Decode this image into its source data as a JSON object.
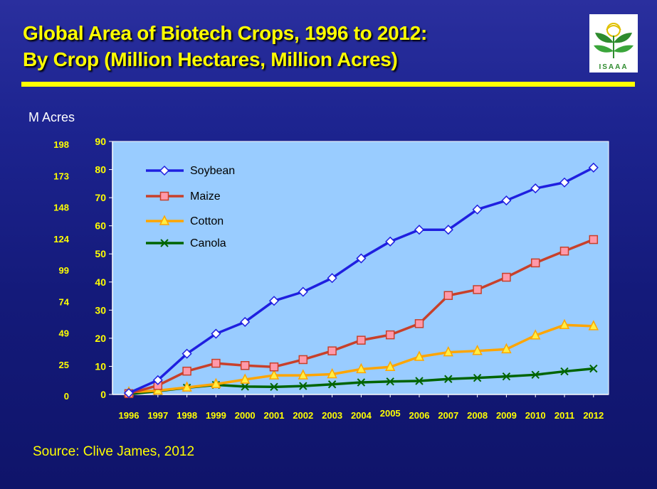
{
  "slide": {
    "title_line1": "Global Area of Biotech Crops, 1996 to 2012:",
    "title_line2": "By Crop (Million Hectares, Million Acres)",
    "acres_label": "M Acres",
    "source": "Source: Clive James, 2012",
    "logo_text": "ISAAA"
  },
  "colors": {
    "title": "#ffff00",
    "plot_background": "#99ccff",
    "soybean": "#1f1fe0",
    "maize": "#c8402a",
    "cotton": "#ffa500",
    "canola": "#006400"
  },
  "chart_data": {
    "type": "line",
    "title": "Global Area of Biotech Crops, 1996 to 2012: By Crop (Million Hectares, Million Acres)",
    "x": [
      "1996",
      "1997",
      "1998",
      "1999",
      "2000",
      "2001",
      "2002",
      "2003",
      "2004",
      "2005",
      "2006",
      "2007",
      "2008",
      "2009",
      "2010",
      "2011",
      "2012"
    ],
    "ylim": [
      0,
      90
    ],
    "yticks": [
      0,
      10,
      20,
      30,
      40,
      50,
      60,
      70,
      80,
      90
    ],
    "secondary_ylabel": "M Acres",
    "secondary_yticks": [
      "0",
      "25",
      "49",
      "74",
      "99",
      "124",
      "148",
      "173",
      "198"
    ],
    "legend_position": "top-left",
    "grid": false,
    "series": [
      {
        "name": "Soybean",
        "marker": "diamond",
        "values": [
          0.5,
          5.1,
          14.5,
          21.6,
          25.8,
          33.3,
          36.5,
          41.4,
          48.4,
          54.4,
          58.6,
          58.6,
          65.8,
          69.0,
          73.3,
          75.4,
          80.7
        ]
      },
      {
        "name": "Maize",
        "marker": "square",
        "values": [
          0.3,
          3.2,
          8.3,
          11.1,
          10.3,
          9.8,
          12.4,
          15.5,
          19.3,
          21.2,
          25.2,
          35.2,
          37.3,
          41.7,
          46.8,
          51.0,
          55.1
        ]
      },
      {
        "name": "Cotton",
        "marker": "triangle",
        "values": [
          0.8,
          1.4,
          2.5,
          3.7,
          5.3,
          6.8,
          6.8,
          7.2,
          9.0,
          9.8,
          13.4,
          15.0,
          15.5,
          16.1,
          21.0,
          24.7,
          24.3
        ]
      },
      {
        "name": "Canola",
        "marker": "x",
        "values": [
          0.1,
          1.2,
          2.4,
          3.4,
          2.8,
          2.7,
          3.0,
          3.6,
          4.3,
          4.6,
          4.8,
          5.5,
          5.9,
          6.4,
          7.0,
          8.2,
          9.2
        ]
      }
    ]
  }
}
